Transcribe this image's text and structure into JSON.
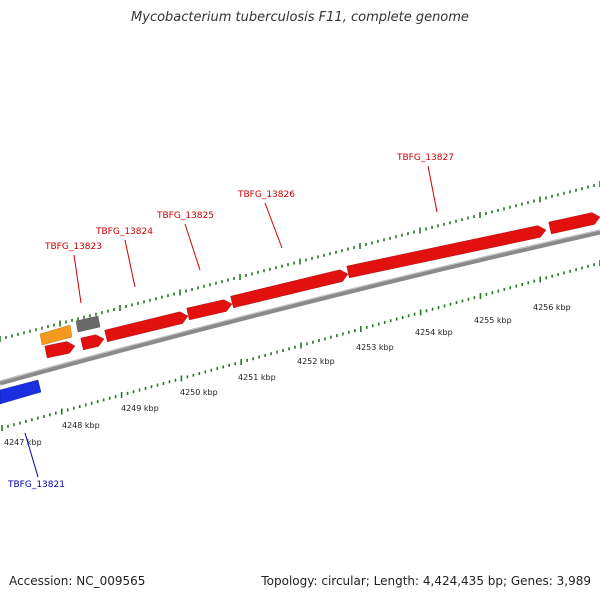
{
  "title": "Mycobacterium tuberculosis F11, complete genome",
  "footer": {
    "accession": "Accession: NC_009565",
    "summary": "Topology: circular; Length: 4,424,435 bp; Genes: 3,989"
  },
  "colors": {
    "forward_gene": "#e31010",
    "reverse_gene": "#1a2fe0",
    "orange_feature": "#f39a1e",
    "gray_feature": "#6a6a6a",
    "backbone": "#8a8a8a",
    "tick": "#1f7a1f",
    "forward_label": "#cc0000",
    "reverse_label": "#0000aa"
  },
  "ruler": {
    "ticks": [
      "4247 kbp",
      "4248 kbp",
      "4249 kbp",
      "4250 kbp",
      "4251 kbp",
      "4252 kbp",
      "4253 kbp",
      "4254 kbp",
      "4255 kbp",
      "4256 kbp"
    ]
  },
  "genes": [
    {
      "label": "TBFG_13821",
      "strand": "reverse"
    },
    {
      "label": "TBFG_13823",
      "strand": "forward"
    },
    {
      "label": "TBFG_13824",
      "strand": "forward"
    },
    {
      "label": "TBFG_13825",
      "strand": "forward"
    },
    {
      "label": "TBFG_13826",
      "strand": "forward"
    },
    {
      "label": "TBFG_13827",
      "strand": "forward"
    }
  ]
}
